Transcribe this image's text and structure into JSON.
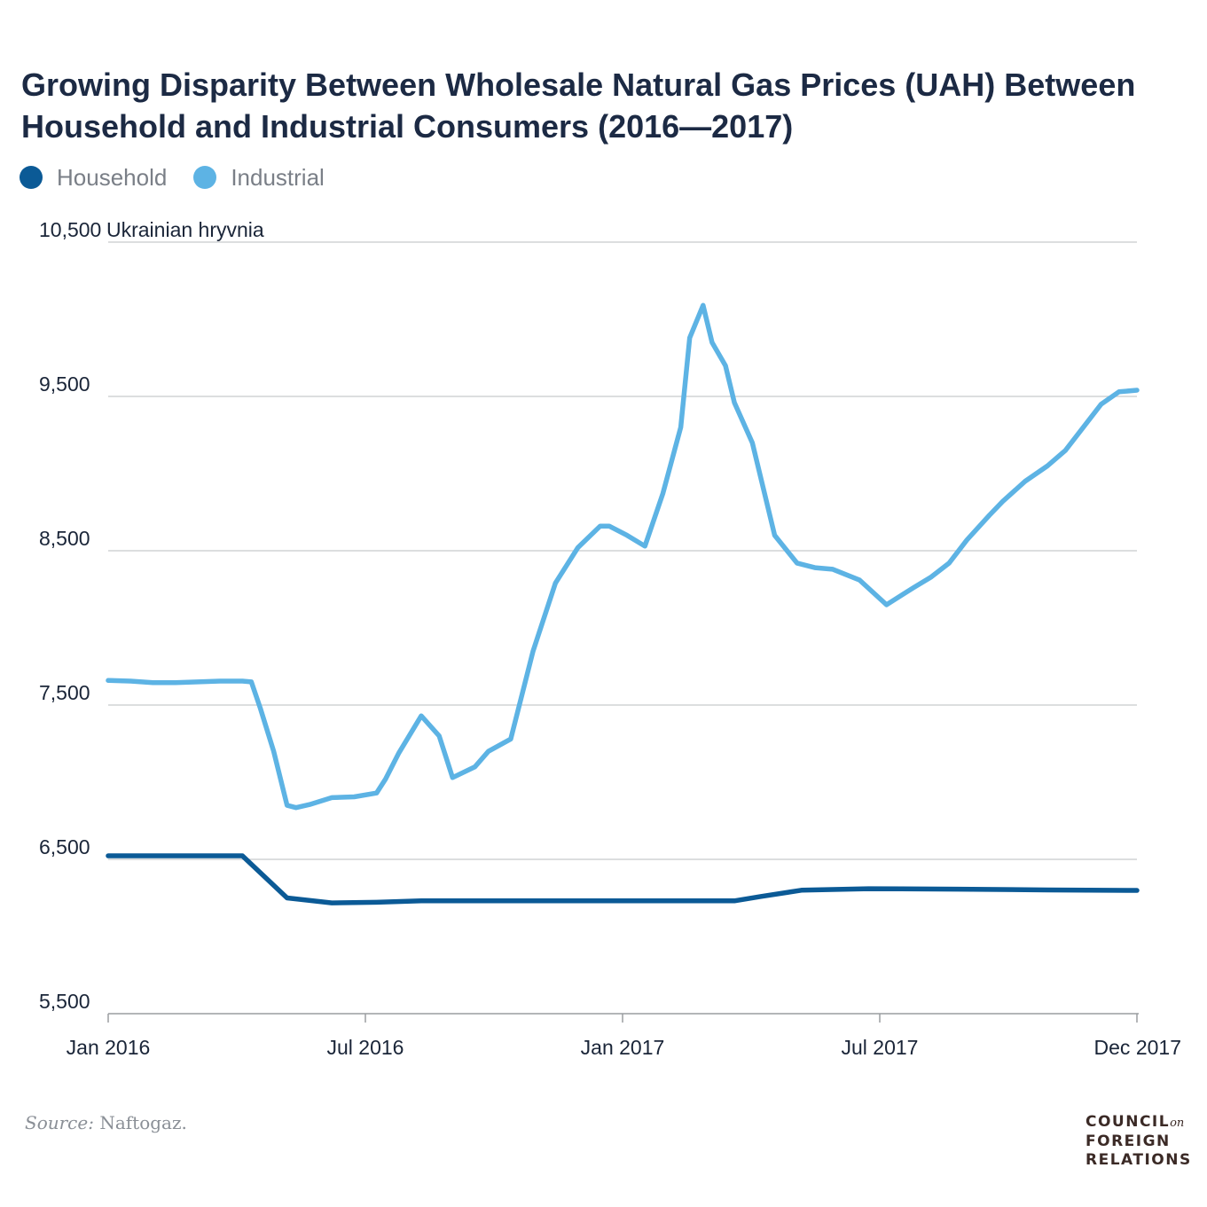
{
  "title": "Growing Disparity Between Wholesale Natural Gas Prices (UAH) Between Household and Industrial Consumers (2016—2017)",
  "legend": [
    {
      "label": "Household",
      "color": "#0b5a96"
    },
    {
      "label": "Industrial",
      "color": "#5db3e4"
    }
  ],
  "source": {
    "label": "Source:",
    "text": "Naftogaz."
  },
  "logo": {
    "line1": "COUNCIL",
    "on": "on",
    "line2": "FOREIGN",
    "line3": "RELATIONS"
  },
  "chart_data": {
    "type": "line",
    "ylabel": "Ukrainian hryvnia",
    "ylim": [
      5500,
      10500
    ],
    "yticks": [
      {
        "value": 10500,
        "label": "10,500"
      },
      {
        "value": 9500,
        "label": "9,500"
      },
      {
        "value": 8500,
        "label": "8,500"
      },
      {
        "value": 7500,
        "label": "7,500"
      },
      {
        "value": 6500,
        "label": "6,500"
      },
      {
        "value": 5500,
        "label": "5,500"
      }
    ],
    "xlim": [
      0,
      23
    ],
    "xticks": [
      {
        "value": 0,
        "label": "Jan 2016"
      },
      {
        "value": 5.75,
        "label": "Jul 2016"
      },
      {
        "value": 11.5,
        "label": "Jan 2017"
      },
      {
        "value": 17.25,
        "label": "Jul 2017"
      },
      {
        "value": 23,
        "label": "Dec 2017"
      }
    ],
    "grid": true,
    "series": [
      {
        "name": "Household",
        "color": "#0b5a96",
        "x": [
          0,
          3,
          4,
          5,
          6,
          7,
          8,
          9,
          10,
          11,
          12,
          13,
          14,
          14.6,
          15.5,
          17,
          19,
          21,
          23
        ],
        "y": [
          6523,
          6523,
          6250,
          6218,
          6222,
          6231,
          6231,
          6231,
          6231,
          6231,
          6231,
          6231,
          6231,
          6260,
          6300,
          6310,
          6307,
          6302,
          6299
        ]
      },
      {
        "name": "Industrial",
        "color": "#5db3e4",
        "x": [
          0,
          0.5,
          1,
          1.5,
          2,
          2.5,
          3,
          3.2,
          3.4,
          3.7,
          4,
          4.2,
          4.5,
          5,
          5.5,
          6,
          6.2,
          6.5,
          7,
          7.4,
          7.7,
          8.2,
          8.5,
          9,
          9.5,
          10,
          10.5,
          11,
          11.2,
          11.6,
          12,
          12.4,
          12.8,
          13,
          13.3,
          13.5,
          13.8,
          14,
          14.4,
          14.9,
          15.4,
          15.8,
          16.2,
          16.8,
          17.4,
          18,
          18.4,
          18.8,
          19.2,
          19.7,
          20,
          20.5,
          21,
          21.4,
          21.8,
          22.2,
          22.6,
          23
        ],
        "y": [
          7660,
          7655,
          7645,
          7645,
          7650,
          7655,
          7655,
          7650,
          7480,
          7200,
          6850,
          6835,
          6855,
          6900,
          6905,
          6930,
          7020,
          7190,
          7430,
          7300,
          7030,
          7100,
          7200,
          7280,
          7850,
          8290,
          8520,
          8660,
          8660,
          8600,
          8530,
          8870,
          9300,
          9880,
          10090,
          9850,
          9700,
          9460,
          9200,
          8600,
          8420,
          8390,
          8380,
          8310,
          8150,
          8260,
          8330,
          8420,
          8570,
          8730,
          8820,
          8950,
          9050,
          9150,
          9300,
          9450,
          9530,
          9540
        ]
      }
    ]
  }
}
